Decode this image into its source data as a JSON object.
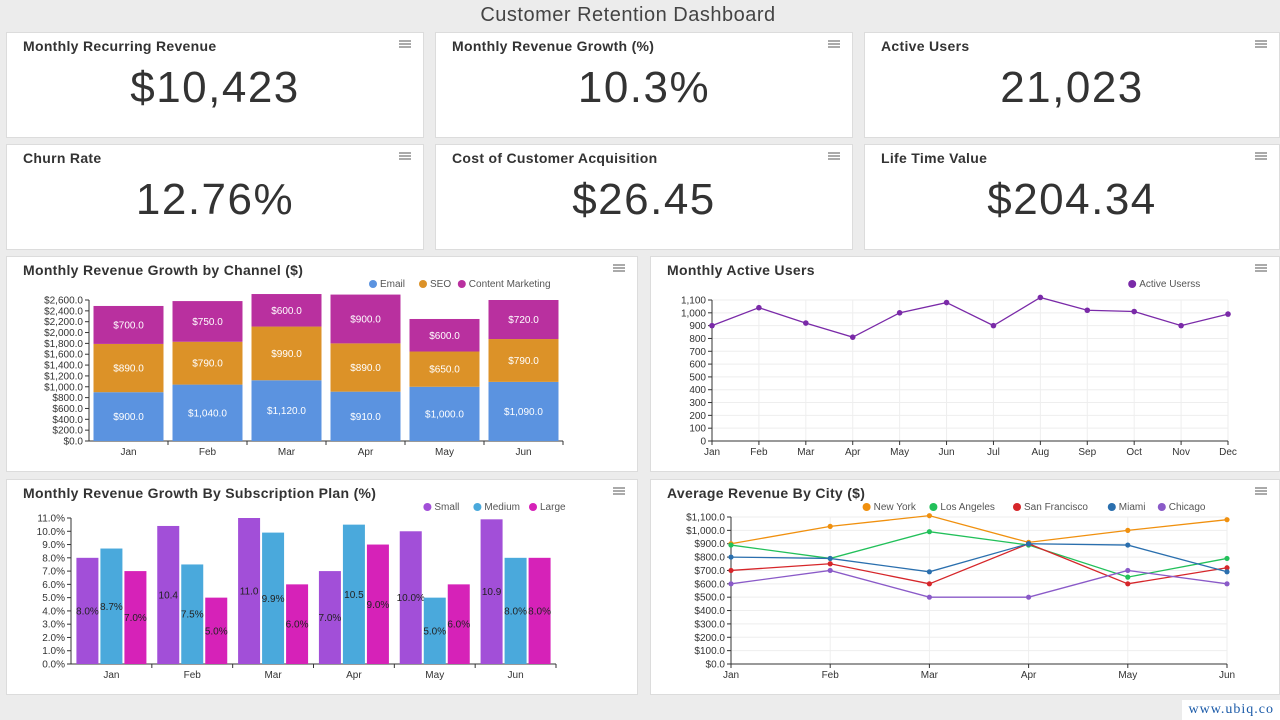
{
  "dashboard": {
    "title": "Customer Retention Dashboard"
  },
  "kpis": [
    {
      "label": "Monthly Recurring Revenue",
      "value": "$10,423"
    },
    {
      "label": "Monthly Revenue Growth (%)",
      "value": "10.3%"
    },
    {
      "label": "Active Users",
      "value": "21,023"
    },
    {
      "label": "Churn Rate",
      "value": "12.76%"
    },
    {
      "label": "Cost of Customer Acquisition",
      "value": "$26.45"
    },
    {
      "label": "Life Time Value",
      "value": "$204.34"
    }
  ],
  "charts": {
    "channel": {
      "title": "Monthly Revenue Growth by Channel ($)"
    },
    "users": {
      "title": "Monthly Active Users"
    },
    "plan": {
      "title": "Monthly Revenue Growth By Subscription Plan (%)"
    },
    "city": {
      "title": "Average Revenue By City ($)"
    }
  },
  "watermark": "www.ubiq.co",
  "chart_data": [
    {
      "type": "bar",
      "stacked": true,
      "categories": [
        "Jan",
        "Feb",
        "Mar",
        "Apr",
        "May",
        "Jun"
      ],
      "series": [
        {
          "name": "Email",
          "color": "#5b93e0",
          "values": [
            900,
            1040,
            1120,
            910,
            1000,
            1090
          ],
          "labels": [
            "$900.0",
            "$1,040.0",
            "$1,120.0",
            "$910.0",
            "$1,000.0",
            "$1,090.0"
          ]
        },
        {
          "name": "SEO",
          "color": "#dc9228",
          "values": [
            890,
            790,
            990,
            890,
            650,
            790
          ],
          "labels": [
            "$890.0",
            "$790.0",
            "$990.0",
            "$890.0",
            "$650.0",
            "$790.0"
          ]
        },
        {
          "name": "Content Marketing",
          "color": "#b9309f",
          "values": [
            700,
            750,
            600,
            900,
            600,
            720
          ],
          "labels": [
            "$700.0",
            "$750.0",
            "$600.0",
            "$900.0",
            "$600.0",
            "$720.0"
          ]
        }
      ],
      "ylim": [
        0,
        2600
      ],
      "yticks": [
        "$0.0",
        "$200.0",
        "$400.0",
        "$600.0",
        "$800.0",
        "$1,000.0",
        "$1,200.0",
        "$1,400.0",
        "$1,600.0",
        "$1,800.0",
        "$2,000.0",
        "$2,200.0",
        "$2,400.0",
        "$2,600.0"
      ],
      "legend": "top-right"
    },
    {
      "type": "line",
      "categories": [
        "Jan",
        "Feb",
        "Mar",
        "Apr",
        "May",
        "Jun",
        "Jul",
        "Aug",
        "Sep",
        "Oct",
        "Nov",
        "Dec"
      ],
      "series": [
        {
          "name": "Active Userss",
          "color": "#7a2aa8",
          "values": [
            900,
            1040,
            920,
            810,
            1000,
            1080,
            900,
            1120,
            1020,
            1010,
            900,
            990
          ]
        }
      ],
      "ylim": [
        0,
        1100
      ],
      "yticks": [
        "0",
        "100",
        "200",
        "300",
        "400",
        "500",
        "600",
        "700",
        "800",
        "900",
        "1,000",
        "1,100"
      ],
      "grid": true,
      "legend": "top-right"
    },
    {
      "type": "bar",
      "stacked": false,
      "categories": [
        "Jan",
        "Feb",
        "Mar",
        "Apr",
        "May",
        "Jun"
      ],
      "series": [
        {
          "name": "Small",
          "color": "#a24fd8",
          "values": [
            8.0,
            10.4,
            11.0,
            7.0,
            10.0,
            10.9
          ],
          "labels": [
            "8.0%",
            "10.4",
            "11.0",
            "7.0%",
            "10.0%",
            "10.9"
          ]
        },
        {
          "name": "Medium",
          "color": "#4aa9dc",
          "values": [
            8.7,
            7.5,
            9.9,
            10.5,
            5.0,
            8.0
          ],
          "labels": [
            "8.7%",
            "7.5%",
            "9.9%",
            "10.5",
            "5.0%",
            "8.0%"
          ]
        },
        {
          "name": "Large",
          "color": "#d622b8",
          "values": [
            7.0,
            5.0,
            6.0,
            9.0,
            6.0,
            8.0
          ],
          "labels": [
            "7.0%",
            "5.0%",
            "6.0%",
            "9.0%",
            "6.0%",
            "8.0%"
          ]
        }
      ],
      "ylim": [
        0,
        11
      ],
      "yticks": [
        "0.0%",
        "1.0%",
        "2.0%",
        "3.0%",
        "4.0%",
        "5.0%",
        "6.0%",
        "7.0%",
        "8.0%",
        "9.0%",
        "10.0%",
        "11.0%"
      ],
      "legend": "top-right"
    },
    {
      "type": "line",
      "categories": [
        "Jan",
        "Feb",
        "Mar",
        "Apr",
        "May",
        "Jun"
      ],
      "series": [
        {
          "name": "New York",
          "color": "#f0900e",
          "values": [
            900,
            1030,
            1110,
            910,
            1000,
            1080
          ]
        },
        {
          "name": "Los Angeles",
          "color": "#22c05a",
          "values": [
            890,
            790,
            990,
            890,
            650,
            790
          ]
        },
        {
          "name": "San Francisco",
          "color": "#d6262a",
          "values": [
            700,
            750,
            600,
            900,
            600,
            720
          ]
        },
        {
          "name": "Miami",
          "color": "#2a6fae",
          "values": [
            800,
            790,
            690,
            900,
            890,
            690
          ]
        },
        {
          "name": "Chicago",
          "color": "#8a5ac8",
          "values": [
            600,
            700,
            500,
            500,
            700,
            600
          ]
        }
      ],
      "ylim": [
        0,
        1100
      ],
      "yticks": [
        "$0.0",
        "$100.0",
        "$200.0",
        "$300.0",
        "$400.0",
        "$500.0",
        "$600.0",
        "$700.0",
        "$800.0",
        "$900.0",
        "$1,000.0",
        "$1,100.0"
      ],
      "grid": true,
      "legend": "top-right"
    }
  ]
}
